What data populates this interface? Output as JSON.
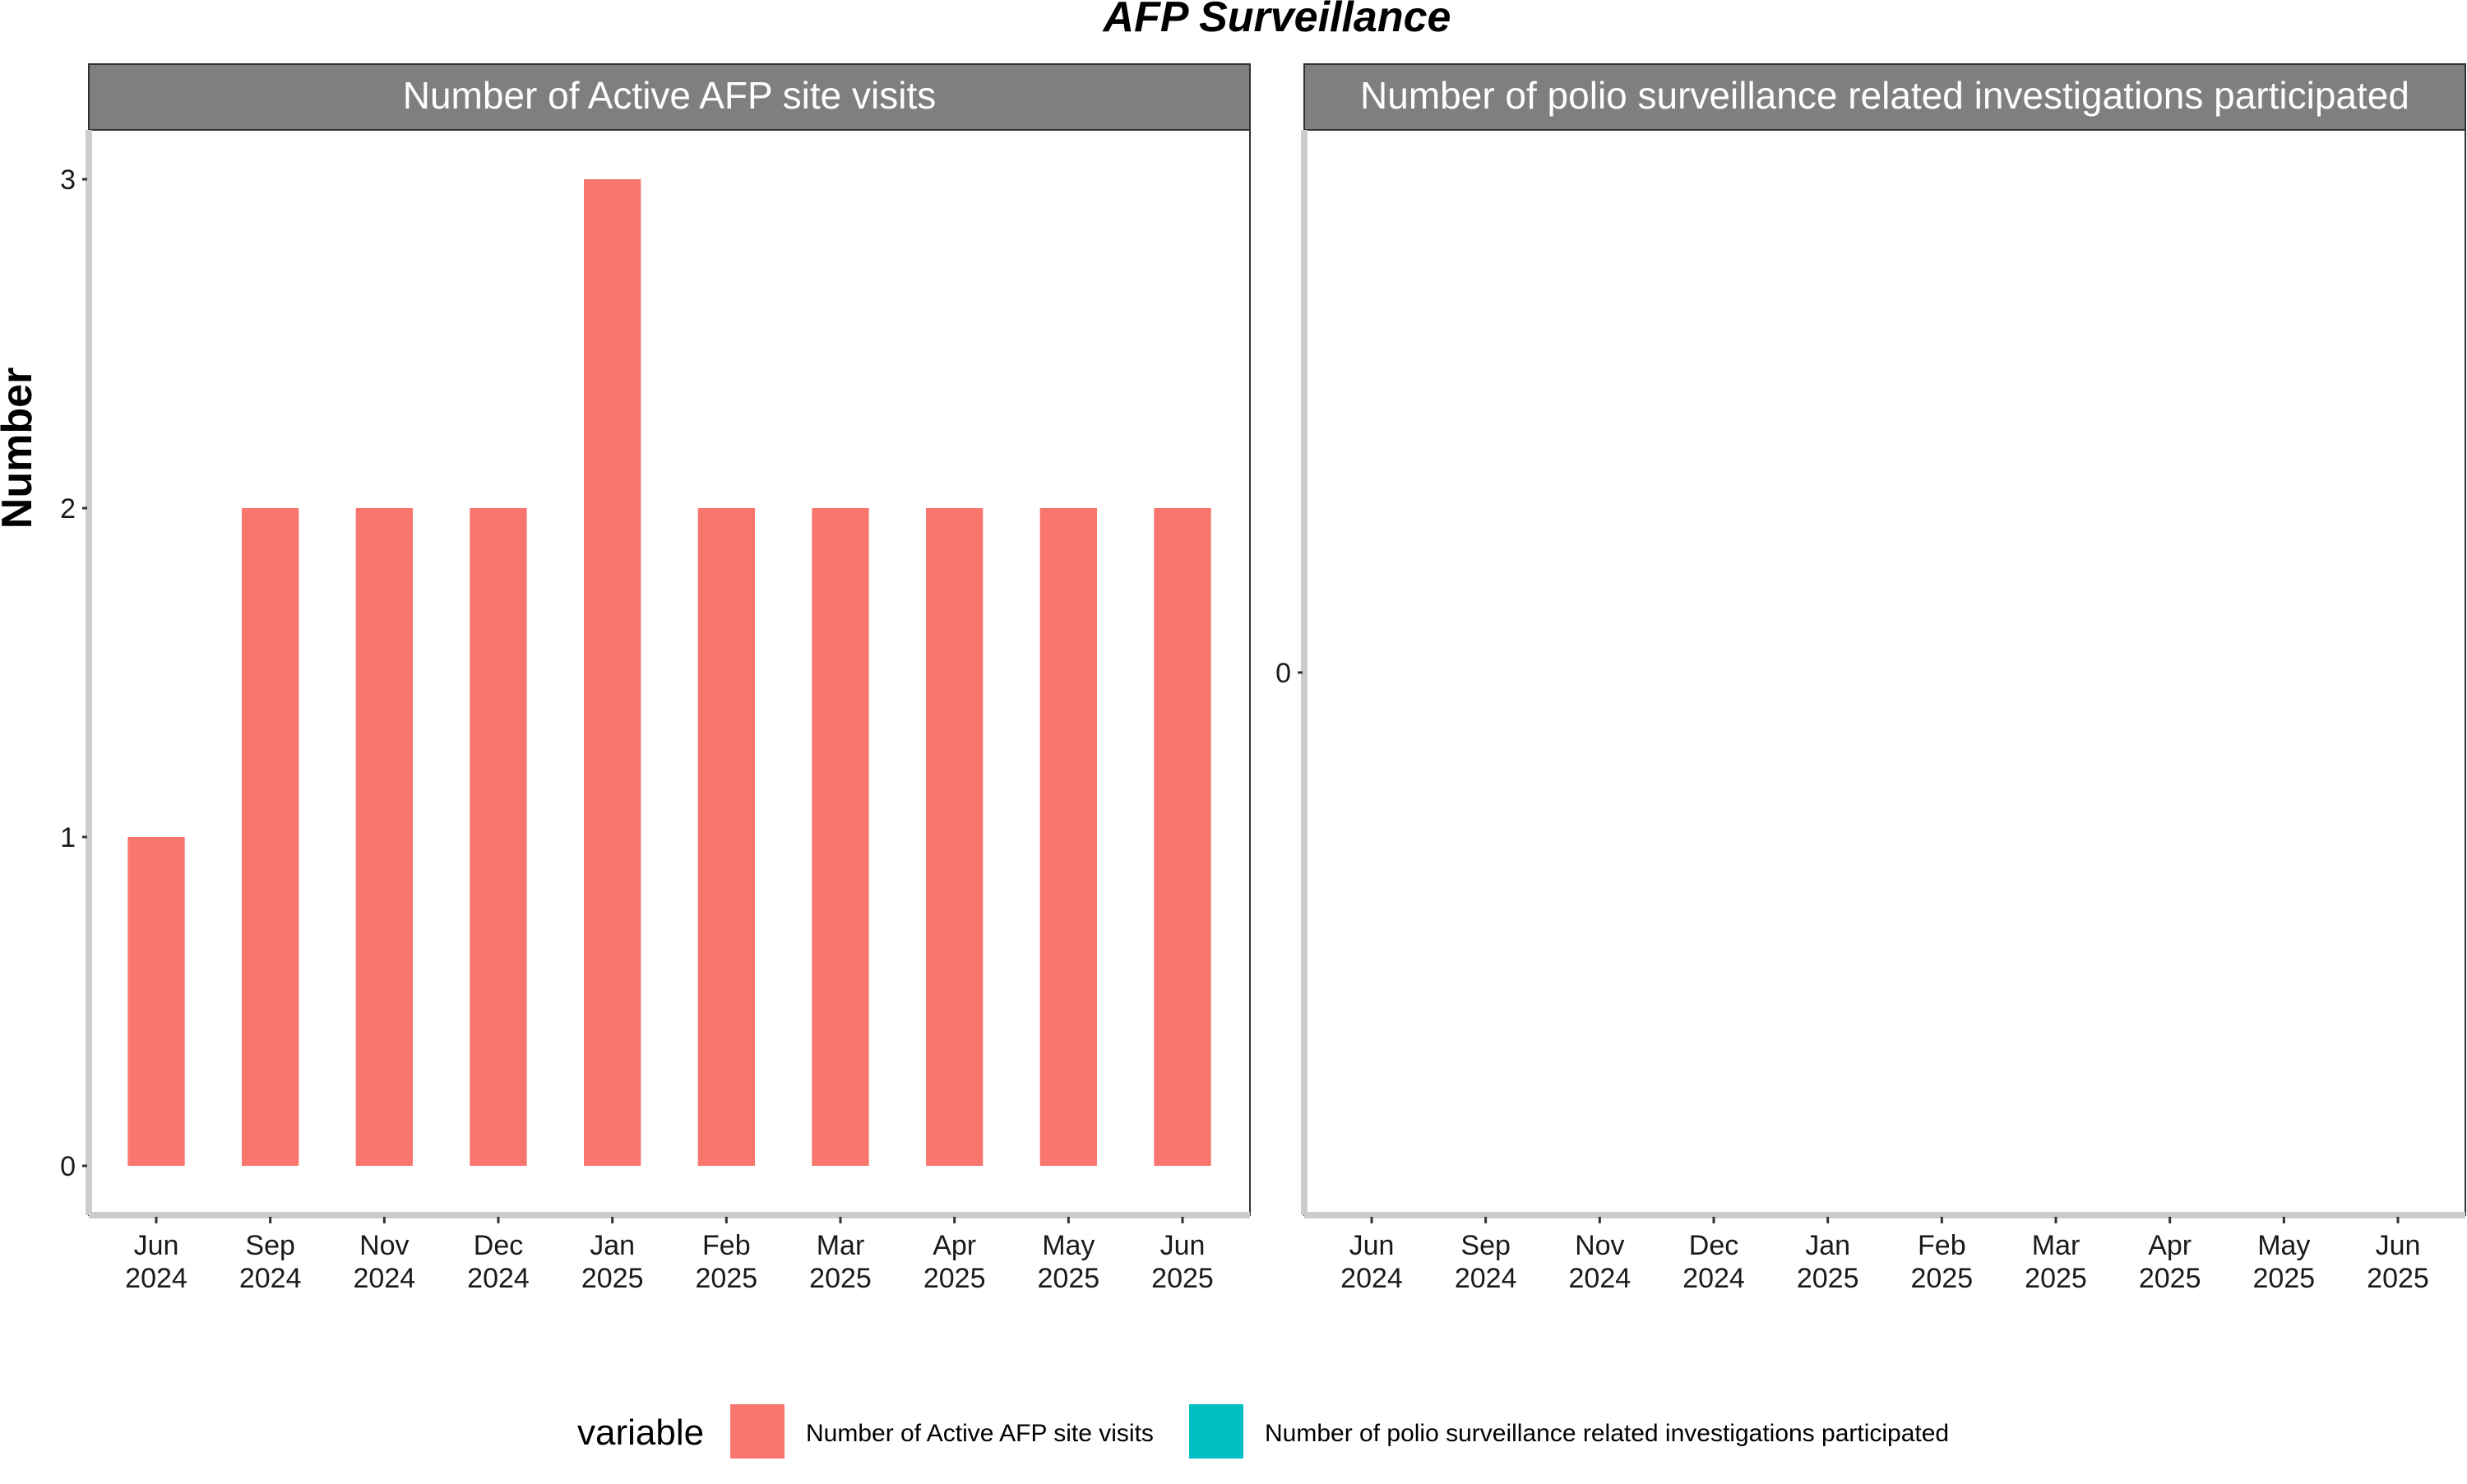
{
  "chart_data": {
    "type": "bar",
    "title": "AFP Surveillance",
    "ylabel": "Number",
    "xlabel": "",
    "categories": [
      "Jun 2024",
      "Sep 2024",
      "Nov 2024",
      "Dec 2024",
      "Jan 2025",
      "Feb 2025",
      "Mar 2025",
      "Apr 2025",
      "May 2025",
      "Jun 2025"
    ],
    "legend": {
      "title": "variable",
      "placement": "bottom",
      "entries": [
        {
          "label": "Number of Active AFP site visits",
          "color": "#F8766D"
        },
        {
          "label": "Number of polio surveillance related investigations participated",
          "color": "#00BFC4"
        }
      ]
    },
    "panels": [
      {
        "strip": "Number of Active AFP site visits",
        "color": "#F8766D",
        "ylim": [
          -0.15,
          3.15
        ],
        "yticks": [
          0,
          1,
          2,
          3
        ],
        "values": [
          1,
          2,
          2,
          2,
          3,
          2,
          2,
          2,
          2,
          2
        ]
      },
      {
        "strip": "Number of polio surveillance related investigations participated",
        "color": "#00BFC4",
        "ylim": [
          -1,
          1
        ],
        "yticks": [
          0
        ],
        "values": []
      }
    ],
    "grid": false
  }
}
